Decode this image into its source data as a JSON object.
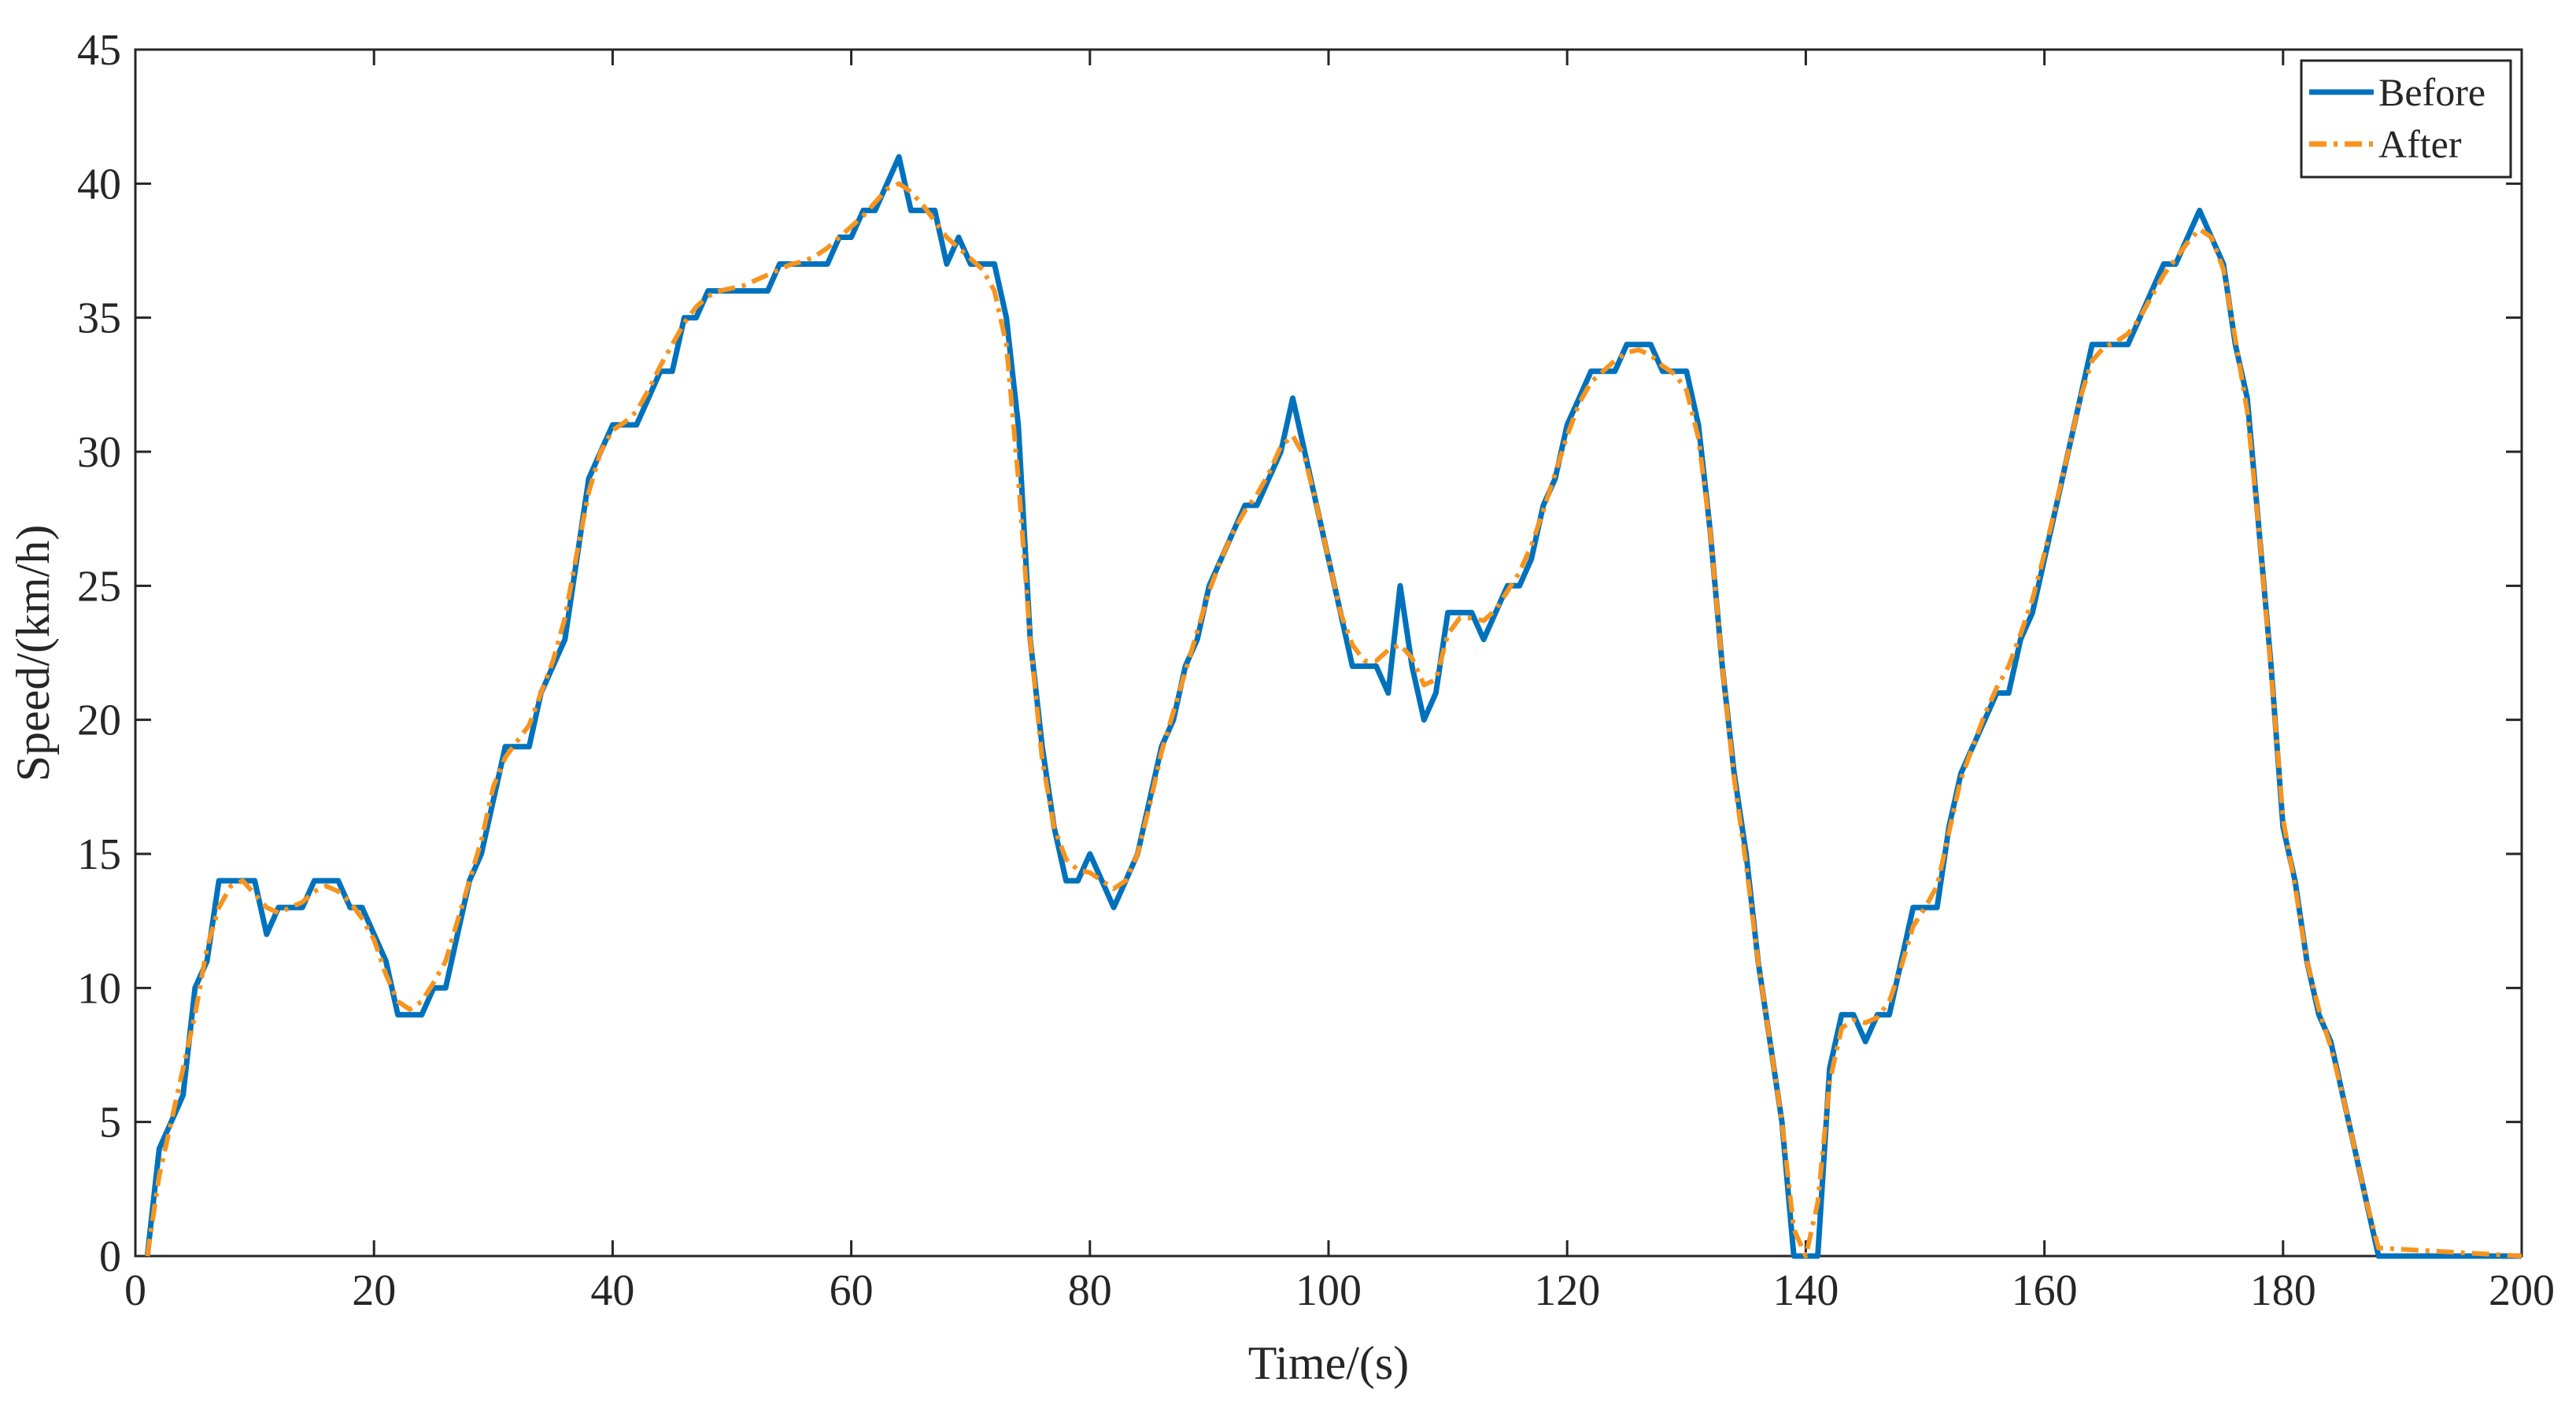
{
  "chart_data": {
    "type": "line",
    "xlabel": "Time/(s)",
    "ylabel": "Speed/(km/h)",
    "xlim": [
      0,
      200
    ],
    "ylim": [
      0,
      45
    ],
    "xticks": [
      0,
      20,
      40,
      60,
      80,
      100,
      120,
      140,
      160,
      180,
      200
    ],
    "yticks": [
      0,
      5,
      10,
      15,
      20,
      25,
      30,
      35,
      40,
      45
    ],
    "grid": false,
    "legend": "upper right",
    "x": [
      1,
      2,
      3,
      4,
      5,
      6,
      7,
      8,
      9,
      10,
      11,
      12,
      13,
      14,
      15,
      16,
      17,
      18,
      19,
      20,
      21,
      22,
      23,
      24,
      25,
      26,
      27,
      28,
      29,
      30,
      31,
      32,
      33,
      34,
      35,
      36,
      37,
      38,
      39,
      40,
      41,
      42,
      43,
      44,
      45,
      46,
      47,
      48,
      49,
      50,
      51,
      52,
      53,
      54,
      55,
      56,
      57,
      58,
      59,
      60,
      61,
      62,
      63,
      64,
      65,
      66,
      67,
      68,
      69,
      70,
      71,
      72,
      73,
      74,
      75,
      76,
      77,
      78,
      79,
      80,
      81,
      82,
      83,
      84,
      85,
      86,
      87,
      88,
      89,
      90,
      91,
      92,
      93,
      94,
      95,
      96,
      97,
      98,
      99,
      100,
      101,
      102,
      103,
      104,
      105,
      106,
      107,
      108,
      109,
      110,
      111,
      112,
      113,
      114,
      115,
      116,
      117,
      118,
      119,
      120,
      121,
      122,
      123,
      124,
      125,
      126,
      127,
      128,
      129,
      130,
      131,
      132,
      133,
      134,
      135,
      136,
      137,
      138,
      139,
      140,
      141,
      142,
      143,
      144,
      145,
      146,
      147,
      148,
      149,
      150,
      151,
      152,
      153,
      154,
      155,
      156,
      157,
      158,
      159,
      160,
      161,
      162,
      163,
      164,
      165,
      166,
      167,
      168,
      169,
      170,
      171,
      172,
      173,
      174,
      175,
      176,
      177,
      178,
      179,
      180,
      181,
      182,
      183,
      184,
      185,
      186,
      187,
      188,
      200
    ],
    "series": [
      {
        "name": "Before",
        "color": "#0072bd",
        "style": "solid",
        "values": [
          0,
          4,
          5,
          6,
          10,
          11,
          14,
          14,
          14,
          14,
          12,
          13,
          13,
          13,
          14,
          14,
          14,
          13,
          13,
          12,
          11,
          9,
          9,
          9,
          10,
          10,
          12,
          14,
          15,
          17,
          19,
          19,
          19,
          21,
          22,
          23,
          26,
          29,
          30,
          31,
          31,
          31,
          32,
          33,
          33,
          35,
          35,
          36,
          36,
          36,
          36,
          36,
          36,
          37,
          37,
          37,
          37,
          37,
          38,
          38,
          39,
          39,
          40,
          41,
          39,
          39,
          39,
          37,
          38,
          37,
          37,
          37,
          35,
          31,
          23,
          19,
          16,
          14,
          14,
          15,
          14,
          13,
          14,
          15,
          17,
          19,
          20,
          22,
          23,
          25,
          26,
          27,
          28,
          28,
          29,
          30,
          32,
          30,
          28,
          26,
          24,
          22,
          22,
          22,
          21,
          25,
          22,
          20,
          21,
          24,
          24,
          24,
          23,
          24,
          25,
          25,
          26,
          28,
          29,
          31,
          32,
          33,
          33,
          33,
          34,
          34,
          34,
          33,
          33,
          33,
          31,
          27,
          22,
          18,
          15,
          11,
          8,
          5,
          0,
          0,
          0,
          7,
          9,
          9,
          8,
          9,
          9,
          11,
          13,
          13,
          13,
          16,
          18,
          19,
          20,
          21,
          21,
          23,
          24,
          26,
          28,
          30,
          32,
          34,
          34,
          34,
          34,
          35,
          36,
          37,
          37,
          38,
          39,
          38,
          37,
          34,
          32,
          27,
          22,
          16,
          14,
          11,
          9,
          8,
          6,
          4,
          2,
          0,
          0
        ]
      },
      {
        "name": "After",
        "color": "#f7941d",
        "style": "dashdot",
        "values": [
          0,
          3,
          5,
          7,
          9,
          11.5,
          13,
          13.8,
          14,
          13.5,
          13,
          12.8,
          13,
          13.2,
          13.6,
          13.8,
          13.6,
          13.2,
          12.6,
          11.8,
          10.5,
          9.5,
          9.2,
          9.5,
          10.2,
          11,
          12.5,
          14,
          15.5,
          17.5,
          18.6,
          19.2,
          19.8,
          21,
          22.2,
          23.8,
          26.2,
          28.5,
          30,
          30.8,
          31.1,
          31.5,
          32.3,
          33.2,
          34,
          34.8,
          35.4,
          35.8,
          36,
          36.1,
          36.2,
          36.4,
          36.6,
          36.8,
          37,
          37.1,
          37.3,
          37.6,
          38,
          38.4,
          38.8,
          39.3,
          39.8,
          40,
          39.7,
          39.2,
          38.6,
          38,
          37.6,
          37.2,
          36.8,
          36,
          34,
          29,
          23,
          18.5,
          16,
          14.8,
          14.4,
          14.3,
          14,
          13.7,
          14,
          15,
          16.8,
          18.8,
          20.3,
          21.8,
          23.3,
          24.8,
          26,
          27,
          27.8,
          28.4,
          29.2,
          30.2,
          30.6,
          29.8,
          28,
          26,
          24,
          22.8,
          22.2,
          22.2,
          22.6,
          22.8,
          22.3,
          21.3,
          21.5,
          23.2,
          23.8,
          23.8,
          23.7,
          24.1,
          24.8,
          25.5,
          26.5,
          27.8,
          29.2,
          30.6,
          31.8,
          32.6,
          33,
          33.4,
          33.7,
          33.8,
          33.6,
          33.2,
          32.9,
          32.3,
          30.5,
          27,
          22,
          17.8,
          14.6,
          11,
          8,
          5,
          1,
          0,
          2,
          6.5,
          8.5,
          8.8,
          8.7,
          8.9,
          9.5,
          10.8,
          12.3,
          13,
          13.8,
          15.8,
          17.8,
          19,
          20.2,
          21.2,
          22,
          23.2,
          24.5,
          26.2,
          28.1,
          30,
          32,
          33.4,
          33.9,
          34.1,
          34.4,
          35,
          35.8,
          36.6,
          37.2,
          37.8,
          38.3,
          38,
          36.8,
          34.2,
          31.5,
          27,
          21.8,
          16.3,
          13.8,
          11,
          9.2,
          7.8,
          6,
          4,
          2,
          0.3,
          0
        ]
      }
    ]
  }
}
